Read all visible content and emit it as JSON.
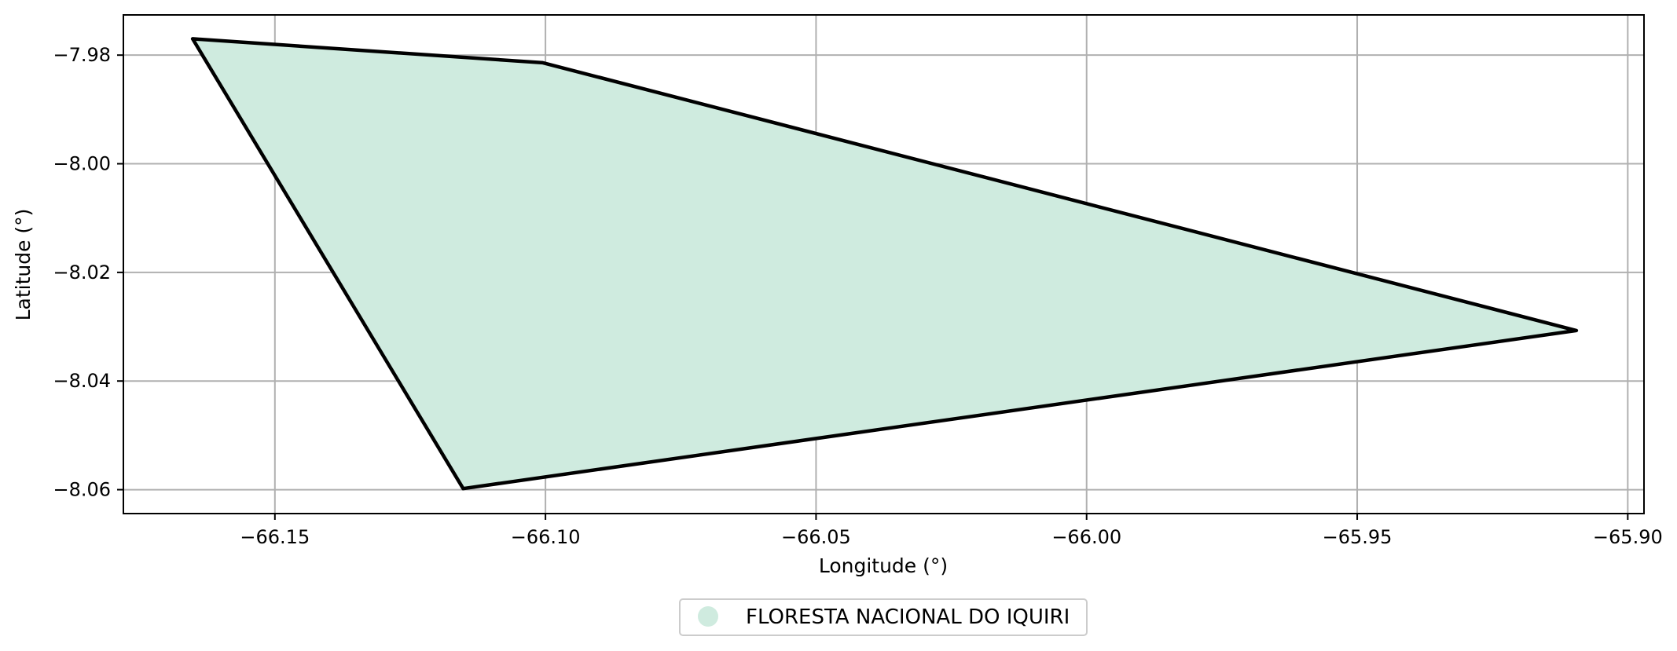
{
  "chart_data": {
    "type": "map",
    "xlabel": "Longitude (°)",
    "ylabel": "Latitude (°)",
    "xlim": [
      -66.178,
      -65.897
    ],
    "ylim": [
      -8.0644,
      -7.9726
    ],
    "xticks": [
      -66.15,
      -66.1,
      -66.05,
      -66.0,
      -65.95,
      -65.9
    ],
    "xtick_labels": [
      "−66.15",
      "−66.10",
      "−66.05",
      "−66.00",
      "−65.95",
      "−65.90"
    ],
    "yticks": [
      -7.98,
      -8.0,
      -8.02,
      -8.04,
      -8.06
    ],
    "ytick_labels": [
      "−7.98",
      "−8.00",
      "−8.02",
      "−8.04",
      "−8.06"
    ],
    "grid": true,
    "legend_position": "bottom-center",
    "polygons": [
      {
        "name": "FLORESTA NACIONAL DO IQUIRI",
        "fill": "#cfebdf",
        "edge": "#000000",
        "coordinates": [
          [
            -66.1652,
            -7.977
          ],
          [
            -66.1005,
            -7.9814
          ],
          [
            -65.9095,
            -8.0307
          ],
          [
            -66.1152,
            -8.0598
          ]
        ]
      }
    ]
  }
}
